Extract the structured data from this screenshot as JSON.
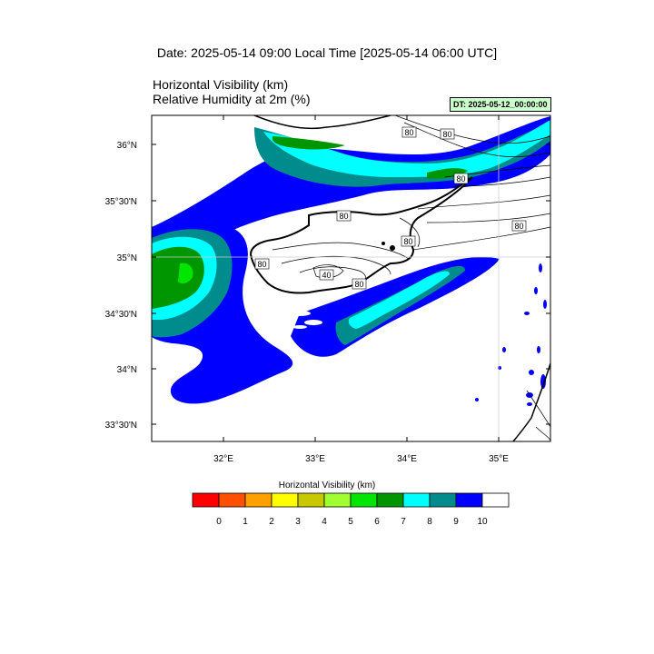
{
  "header": {
    "date_title": "Date: 2025-05-14  09:00 Local Time [2025-05-14  06:00 UTC]",
    "variable_1": "Horizontal Visibility   (km)",
    "variable_2": "Relative Humidity at 2m   (%)",
    "dt_box": "DT: 2025-05-12_00:00:00"
  },
  "map": {
    "lat_labels": [
      "36°N",
      "35°30'N",
      "35°N",
      "34°30'N",
      "34°N",
      "33°30'N"
    ],
    "lon_labels": [
      "32°E",
      "33°E",
      "34°E",
      "35°E"
    ],
    "contour_labels": [
      "80",
      "80",
      "80",
      "80",
      "80",
      "80",
      "40",
      "80",
      "80"
    ]
  },
  "colorbar": {
    "title": "Horizontal Visibility  (km)",
    "labels": [
      "0",
      "1",
      "2",
      "3",
      "4",
      "5",
      "6",
      "7",
      "8",
      "9",
      "10"
    ],
    "colors": [
      "#ff0000",
      "#ff5000",
      "#ffa000",
      "#ffff00",
      "#c8c800",
      "#a0ff30",
      "#00e600",
      "#009600",
      "#00ffff",
      "#008c8c",
      "#0000ff",
      "#ffffff"
    ]
  }
}
